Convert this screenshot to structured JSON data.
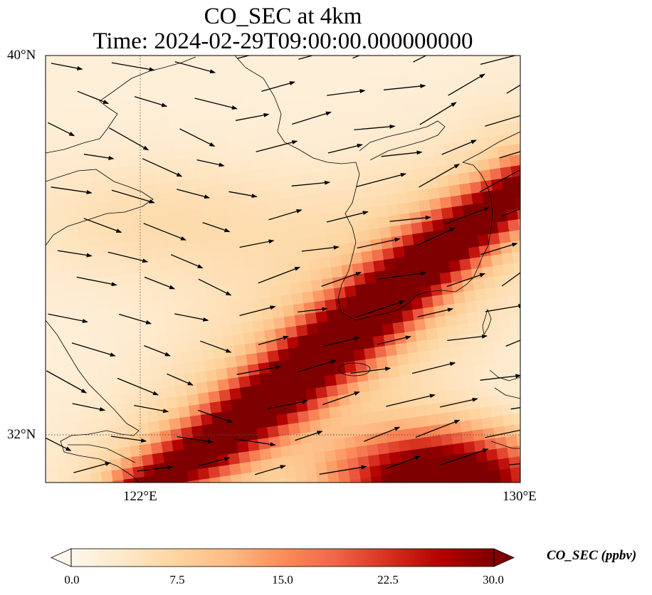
{
  "map": {
    "title_line1": "CO_SEC at 4km",
    "title_line2": "Time: 2024-02-29T09:00:00.000000000",
    "lat_labels": [
      "40°N",
      "32°N"
    ],
    "lon_labels": [
      "122°E",
      "130°E"
    ],
    "extent": {
      "lon_min": 120,
      "lon_max": 130,
      "lat_min": 31,
      "lat_max": 40
    },
    "gridlines": {
      "lons": [
        122
      ],
      "lats": [
        32
      ],
      "style": "dotted"
    },
    "field": {
      "variable": "CO_SEC",
      "level": "4km",
      "plume_axis": [
        [
          122.0,
          30.8
        ],
        [
          123.5,
          31.8
        ],
        [
          125.0,
          33.0
        ],
        [
          126.5,
          34.3
        ],
        [
          128.2,
          35.8
        ],
        [
          130.0,
          37.2
        ]
      ],
      "plume_peak_ppbv": 30,
      "southeast_max_ppbv": 30,
      "background_ppbv": 2
    },
    "vectors": {
      "type": "wind",
      "general_direction": "westerly"
    }
  },
  "colorbar": {
    "label": "CO_SEC (ppbv)",
    "ticks": [
      "0.0",
      "7.5",
      "15.0",
      "22.5",
      "30.0"
    ],
    "min": 0,
    "max": 30,
    "extend": "both",
    "colormap": "OrRd",
    "colors": [
      "#fff7ec",
      "#fee8c8",
      "#fdd49e",
      "#fdbb84",
      "#fc8d59",
      "#ef6548",
      "#d7301f",
      "#b30000",
      "#7f0000"
    ]
  }
}
